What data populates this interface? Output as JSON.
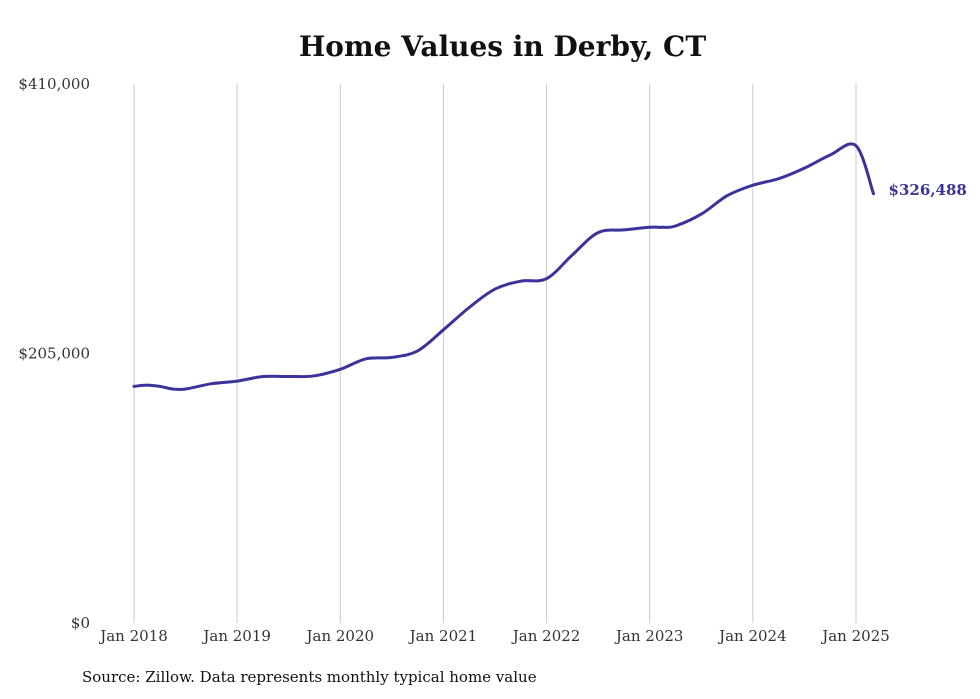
{
  "chart_data": {
    "type": "line",
    "title": "Home Values in Derby, CT",
    "xlabel": "",
    "ylabel": "",
    "ylim": [
      0,
      410000
    ],
    "y_ticks": [
      {
        "value": 0,
        "label": "$0"
      },
      {
        "value": 205000,
        "label": "$205,000"
      },
      {
        "value": 410000,
        "label": "$410,000"
      }
    ],
    "x_ticks": [
      {
        "value": 2018,
        "label": "Jan 2018"
      },
      {
        "value": 2019,
        "label": "Jan 2019"
      },
      {
        "value": 2020,
        "label": "Jan 2020"
      },
      {
        "value": 2021,
        "label": "Jan 2021"
      },
      {
        "value": 2022,
        "label": "Jan 2022"
      },
      {
        "value": 2023,
        "label": "Jan 2023"
      },
      {
        "value": 2024,
        "label": "Jan 2024"
      },
      {
        "value": 2025,
        "label": "Jan 2025"
      }
    ],
    "grid": "vertical",
    "line_color": "#3a3399",
    "series": [
      {
        "name": "",
        "x": [
          2018.0,
          2018.125,
          2018.25,
          2018.375,
          2018.5,
          2018.75,
          2019.0,
          2019.25,
          2019.5,
          2019.75,
          2020.0,
          2020.25,
          2020.5,
          2020.75,
          2021.0,
          2021.25,
          2021.5,
          2021.75,
          2022.0,
          2022.25,
          2022.5,
          2022.75,
          2023.0,
          2023.125,
          2023.25,
          2023.5,
          2023.75,
          2024.0,
          2024.25,
          2024.5,
          2024.75,
          2025.0,
          2025.17
        ],
        "y": [
          180000,
          181000,
          180000,
          178000,
          178000,
          182000,
          184000,
          187500,
          187500,
          188000,
          193000,
          201000,
          202000,
          207000,
          223000,
          240000,
          254000,
          260000,
          262000,
          280000,
          297000,
          299000,
          301000,
          301000,
          302000,
          311000,
          325000,
          333000,
          338000,
          346000,
          356000,
          363000,
          326488
        ]
      }
    ],
    "end_label": "$326,488"
  },
  "source_note": "Source: Zillow. Data represents monthly typical home value"
}
